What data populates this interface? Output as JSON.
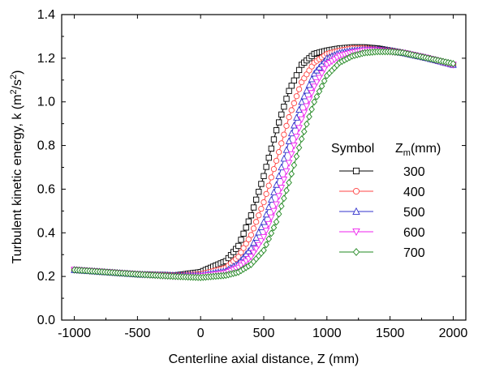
{
  "chart_data": {
    "type": "line",
    "xlabel": "Centerline axial distance, Z (mm)",
    "ylabel": {
      "prefix": "Turbulent kinetic energy, k (m",
      "sup1": "2",
      "mid": "/s",
      "sup2": "2",
      "suffix": ")"
    },
    "xlim": [
      -1100,
      2100
    ],
    "ylim": [
      0.0,
      1.4
    ],
    "xticks": [
      -1000,
      -500,
      0,
      500,
      1000,
      1500,
      2000
    ],
    "xtick_labels": [
      "-1000",
      "-500",
      "0",
      "500",
      "1000",
      "1500",
      "2000"
    ],
    "yticks": [
      0.0,
      0.2,
      0.4,
      0.6,
      0.8,
      1.0,
      1.2,
      1.4
    ],
    "ytick_labels": [
      "0.0",
      "0.2",
      "0.4",
      "0.6",
      "0.8",
      "1.0",
      "1.2",
      "1.4"
    ],
    "grid": false,
    "legend": {
      "placement": "right",
      "header_symbol": "Symbol",
      "header_z": "Z",
      "header_sub": "m",
      "header_unit": "(mm)"
    },
    "series": [
      {
        "name": "300",
        "color": "#000000",
        "marker": "square",
        "x": [
          -1000,
          -500,
          -200,
          0,
          200,
          300,
          400,
          500,
          600,
          700,
          800,
          900,
          1000,
          1100,
          1200,
          1300,
          1400,
          1500,
          1600,
          1800,
          2000
        ],
        "y": [
          0.23,
          0.21,
          0.205,
          0.22,
          0.27,
          0.34,
          0.48,
          0.66,
          0.87,
          1.05,
          1.17,
          1.22,
          1.235,
          1.245,
          1.25,
          1.25,
          1.245,
          1.235,
          1.225,
          1.2,
          1.17
        ]
      },
      {
        "name": "400",
        "color": "#ff4444",
        "marker": "circle",
        "x": [
          -1000,
          -500,
          -200,
          0,
          200,
          300,
          400,
          500,
          600,
          700,
          800,
          900,
          1000,
          1100,
          1200,
          1300,
          1400,
          1500,
          1600,
          1800,
          2000
        ],
        "y": [
          0.23,
          0.21,
          0.205,
          0.21,
          0.24,
          0.29,
          0.39,
          0.54,
          0.73,
          0.93,
          1.09,
          1.18,
          1.22,
          1.235,
          1.245,
          1.245,
          1.24,
          1.235,
          1.225,
          1.2,
          1.17
        ]
      },
      {
        "name": "500",
        "color": "#3333cc",
        "marker": "triangle-up",
        "x": [
          -1000,
          -500,
          -200,
          0,
          200,
          300,
          400,
          500,
          600,
          700,
          800,
          900,
          1000,
          1100,
          1200,
          1300,
          1400,
          1500,
          1600,
          1800,
          2000
        ],
        "y": [
          0.23,
          0.21,
          0.205,
          0.205,
          0.225,
          0.26,
          0.33,
          0.45,
          0.62,
          0.82,
          1.0,
          1.13,
          1.2,
          1.225,
          1.235,
          1.24,
          1.24,
          1.235,
          1.225,
          1.2,
          1.17
        ]
      },
      {
        "name": "600",
        "color": "#ee22ee",
        "marker": "triangle-down",
        "x": [
          -1000,
          -500,
          -200,
          0,
          200,
          300,
          400,
          500,
          600,
          700,
          800,
          900,
          1000,
          1100,
          1200,
          1300,
          1400,
          1500,
          1600,
          1800,
          2000
        ],
        "y": [
          0.23,
          0.21,
          0.2,
          0.2,
          0.215,
          0.24,
          0.29,
          0.38,
          0.53,
          0.72,
          0.92,
          1.07,
          1.17,
          1.21,
          1.225,
          1.235,
          1.235,
          1.23,
          1.225,
          1.2,
          1.17
        ]
      },
      {
        "name": "700",
        "color": "#228822",
        "marker": "diamond",
        "x": [
          -1000,
          -500,
          -200,
          0,
          200,
          300,
          400,
          500,
          600,
          700,
          800,
          900,
          1000,
          1100,
          1200,
          1300,
          1400,
          1500,
          1600,
          1800,
          2000
        ],
        "y": [
          0.23,
          0.21,
          0.2,
          0.195,
          0.205,
          0.22,
          0.255,
          0.32,
          0.45,
          0.63,
          0.83,
          1.0,
          1.12,
          1.18,
          1.21,
          1.225,
          1.23,
          1.23,
          1.225,
          1.2,
          1.175
        ]
      }
    ]
  }
}
